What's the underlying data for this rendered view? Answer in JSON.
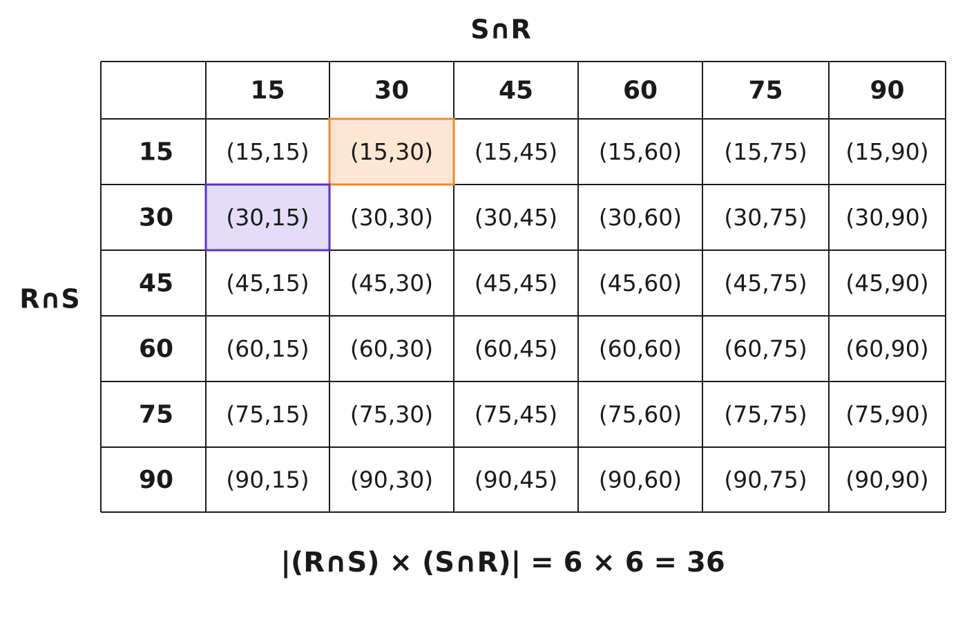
{
  "column_label": "S∩R",
  "row_label": "R∩S",
  "table": {
    "columns": [
      15,
      30,
      45,
      60,
      75,
      90
    ],
    "rows": [
      {
        "header": 15,
        "cells": [
          "(15,15)",
          "(15,30)",
          "(15,45)",
          "(15,60)",
          "(15,75)",
          "(15,90)"
        ]
      },
      {
        "header": 30,
        "cells": [
          "(30,15)",
          "(30,30)",
          "(30,45)",
          "(30,60)",
          "(30,75)",
          "(30,90)"
        ]
      },
      {
        "header": 45,
        "cells": [
          "(45,15)",
          "(45,30)",
          "(45,45)",
          "(45,60)",
          "(45,75)",
          "(45,90)"
        ]
      },
      {
        "header": 60,
        "cells": [
          "(60,15)",
          "(60,30)",
          "(60,45)",
          "(60,60)",
          "(60,75)",
          "(60,90)"
        ]
      },
      {
        "header": 75,
        "cells": [
          "(75,15)",
          "(75,30)",
          "(75,45)",
          "(75,60)",
          "(75,75)",
          "(75,90)"
        ]
      },
      {
        "header": 90,
        "cells": [
          "(90,15)",
          "(90,30)",
          "(90,45)",
          "(90,60)",
          "(90,75)",
          "(90,90)"
        ]
      }
    ],
    "highlights": [
      {
        "row": 0,
        "col": 1,
        "stroke": "#f08a2c",
        "fill": "#fde7d4"
      },
      {
        "row": 1,
        "col": 0,
        "stroke": "#5b2fc9",
        "fill": "#e3dcfb"
      }
    ]
  },
  "formula": "|(R∩S) × (S∩R)| = 6 × 6 = 36"
}
